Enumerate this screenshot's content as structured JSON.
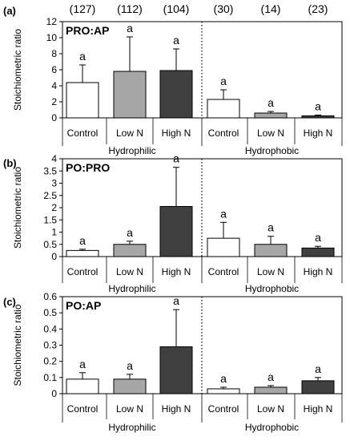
{
  "figure": {
    "n_counts": [
      "(127)",
      "(112)",
      "(104)",
      "(30)",
      "(14)",
      "(23)"
    ],
    "group_labels": [
      "Hydrophilic",
      "Hydrophobic"
    ],
    "category_labels": [
      "Control",
      "Low N",
      "High N",
      "Control",
      "Low N",
      "High N"
    ],
    "bar_colors": [
      "#ffffff",
      "#a6a6a6",
      "#404040",
      "#ffffff",
      "#a6a6a6",
      "#404040"
    ]
  },
  "chart_data": [
    {
      "type": "bar",
      "panel": "(a)",
      "title": "PRO:AP",
      "ylabel": "Stoichiometric ratio",
      "ylim": [
        0,
        12
      ],
      "yticks": [
        "0",
        "2",
        "4",
        "6",
        "8",
        "10",
        "12"
      ],
      "categories": [
        "Control",
        "Low N",
        "High N",
        "Control",
        "Low N",
        "High N"
      ],
      "groups": [
        "Hydrophilic",
        "Hydrophobic"
      ],
      "values": [
        4.4,
        5.8,
        5.9,
        2.3,
        0.6,
        0.25
      ],
      "errors": [
        2.2,
        4.3,
        2.7,
        1.2,
        0.2,
        0.1
      ],
      "labels": [
        "a",
        "a",
        "a",
        "a",
        "a",
        "a"
      ]
    },
    {
      "type": "bar",
      "panel": "(b)",
      "title": "PO:PRO",
      "ylabel": "Stoichiometric ratio",
      "ylim": [
        0,
        4
      ],
      "yticks": [
        "0",
        "0.5",
        "1",
        "1.5",
        "2",
        "2.5",
        "3",
        "3.5",
        "4"
      ],
      "categories": [
        "Control",
        "Low N",
        "High N",
        "Control",
        "Low N",
        "High N"
      ],
      "groups": [
        "Hydrophilic",
        "Hydrophobic"
      ],
      "values": [
        0.25,
        0.5,
        2.05,
        0.75,
        0.5,
        0.35
      ],
      "errors": [
        0.05,
        0.13,
        1.6,
        0.65,
        0.33,
        0.07
      ],
      "labels": [
        "a",
        "a",
        "a",
        "a",
        "a",
        "a"
      ]
    },
    {
      "type": "bar",
      "panel": "(c)",
      "title": "PO:AP",
      "ylabel": "Stoichiometric ratio",
      "ylim": [
        0,
        0.6
      ],
      "yticks": [
        "0",
        "0.1",
        "0.2",
        "0.3",
        "0.4",
        "0.5",
        "0.6"
      ],
      "categories": [
        "Control",
        "Low N",
        "High N",
        "Control",
        "Low N",
        "High N"
      ],
      "groups": [
        "Hydrophilic",
        "Hydrophobic"
      ],
      "values": [
        0.09,
        0.09,
        0.29,
        0.03,
        0.04,
        0.08
      ],
      "errors": [
        0.04,
        0.03,
        0.23,
        0.01,
        0.01,
        0.02
      ],
      "labels": [
        "a",
        "a",
        "a",
        "a",
        "a",
        "a"
      ]
    }
  ]
}
